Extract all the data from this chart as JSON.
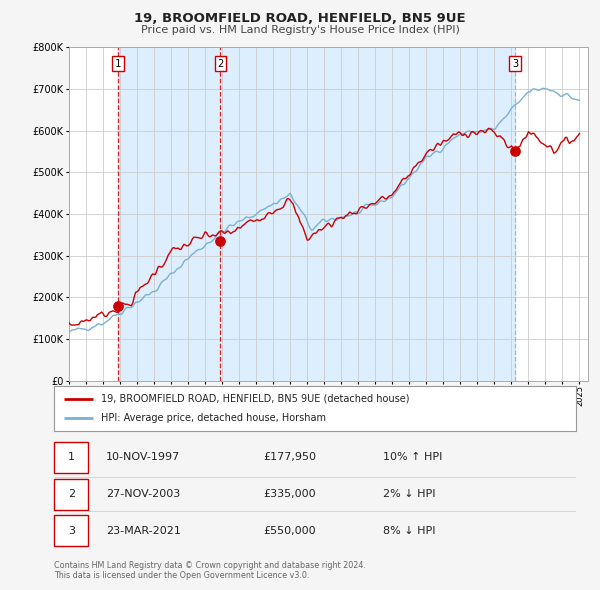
{
  "title": "19, BROOMFIELD ROAD, HENFIELD, BN5 9UE",
  "subtitle": "Price paid vs. HM Land Registry's House Price Index (HPI)",
  "legend_label_red": "19, BROOMFIELD ROAD, HENFIELD, BN5 9UE (detached house)",
  "legend_label_blue": "HPI: Average price, detached house, Horsham",
  "footnote1": "Contains HM Land Registry data © Crown copyright and database right 2024.",
  "footnote2": "This data is licensed under the Open Government Licence v3.0.",
  "transactions": [
    {
      "num": 1,
      "date": "10-NOV-1997",
      "price": 177950,
      "pct": "10%",
      "dir": "↑"
    },
    {
      "num": 2,
      "date": "27-NOV-2003",
      "price": 335000,
      "pct": "2%",
      "dir": "↓"
    },
    {
      "num": 3,
      "date": "23-MAR-2021",
      "price": 550000,
      "pct": "8%",
      "dir": "↓"
    }
  ],
  "sale_years": [
    1997.87,
    2003.9,
    2021.22
  ],
  "sale_prices": [
    177950,
    335000,
    550000
  ],
  "background_color": "#f5f5f5",
  "plot_bg_color": "#ffffff",
  "red_color": "#cc0000",
  "blue_color": "#7ab0d4",
  "shaded_color": "#ddeeff",
  "grid_color": "#cccccc",
  "ylim": [
    0,
    800000
  ],
  "xlim_start": 1995.0,
  "xlim_end": 2025.5
}
